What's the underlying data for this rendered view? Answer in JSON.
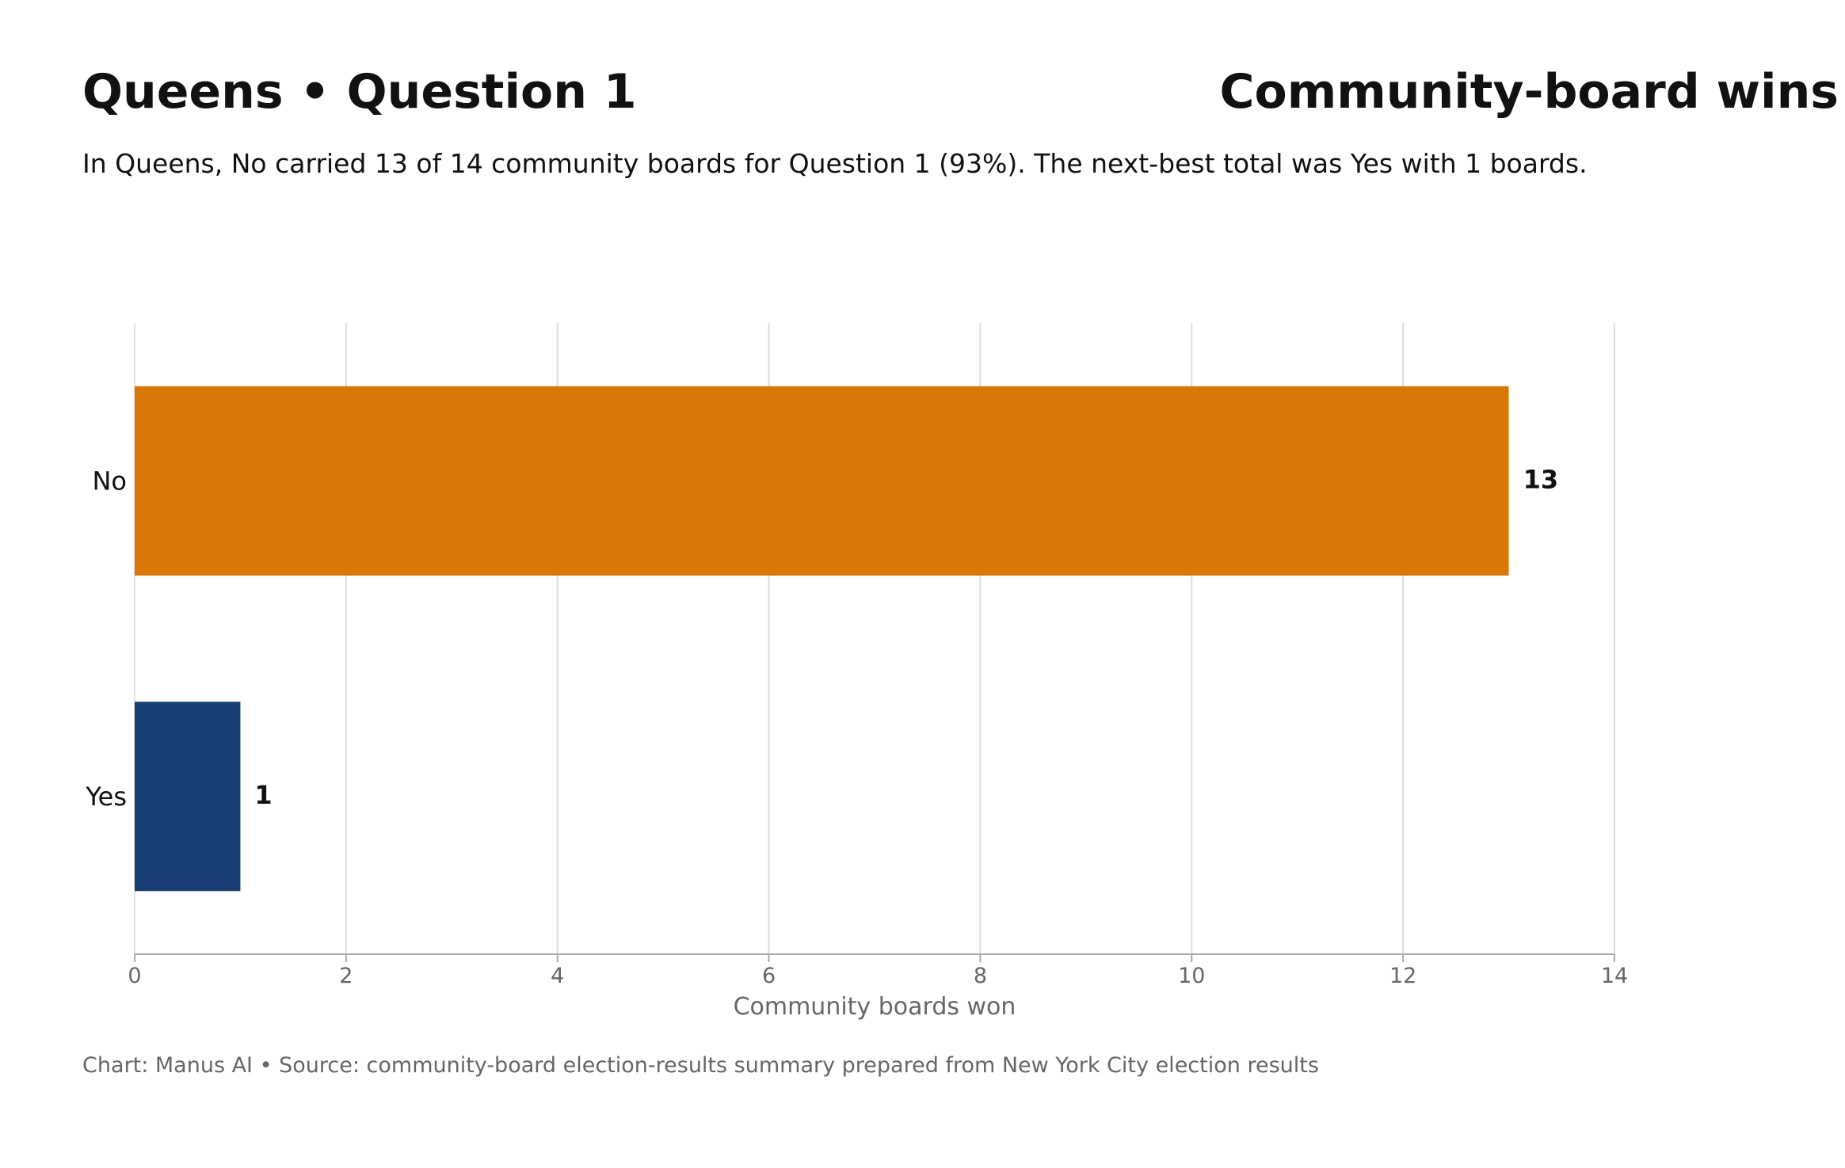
{
  "header": {
    "title_left": "Queens • Question 1",
    "title_right": "Community-board wins",
    "subtitle": "In Queens, No carried 13 of 14 community boards for Question 1 (93%). The next-best total was Yes with 1 boards."
  },
  "footer": {
    "source": "Chart: Manus AI • Source: community-board election-results summary prepared from New York City election results"
  },
  "chart_data": {
    "type": "bar",
    "orientation": "horizontal",
    "categories": [
      "No",
      "Yes"
    ],
    "values": [
      13,
      1
    ],
    "data_labels": [
      "13",
      "1"
    ],
    "colors": [
      "#D97706",
      "#173D72"
    ],
    "xlabel": "Community boards won",
    "xlim": [
      0,
      14
    ],
    "xticks": [
      0,
      2,
      4,
      6,
      8,
      10,
      12,
      14
    ],
    "grid": "vertical",
    "legend": "none"
  }
}
